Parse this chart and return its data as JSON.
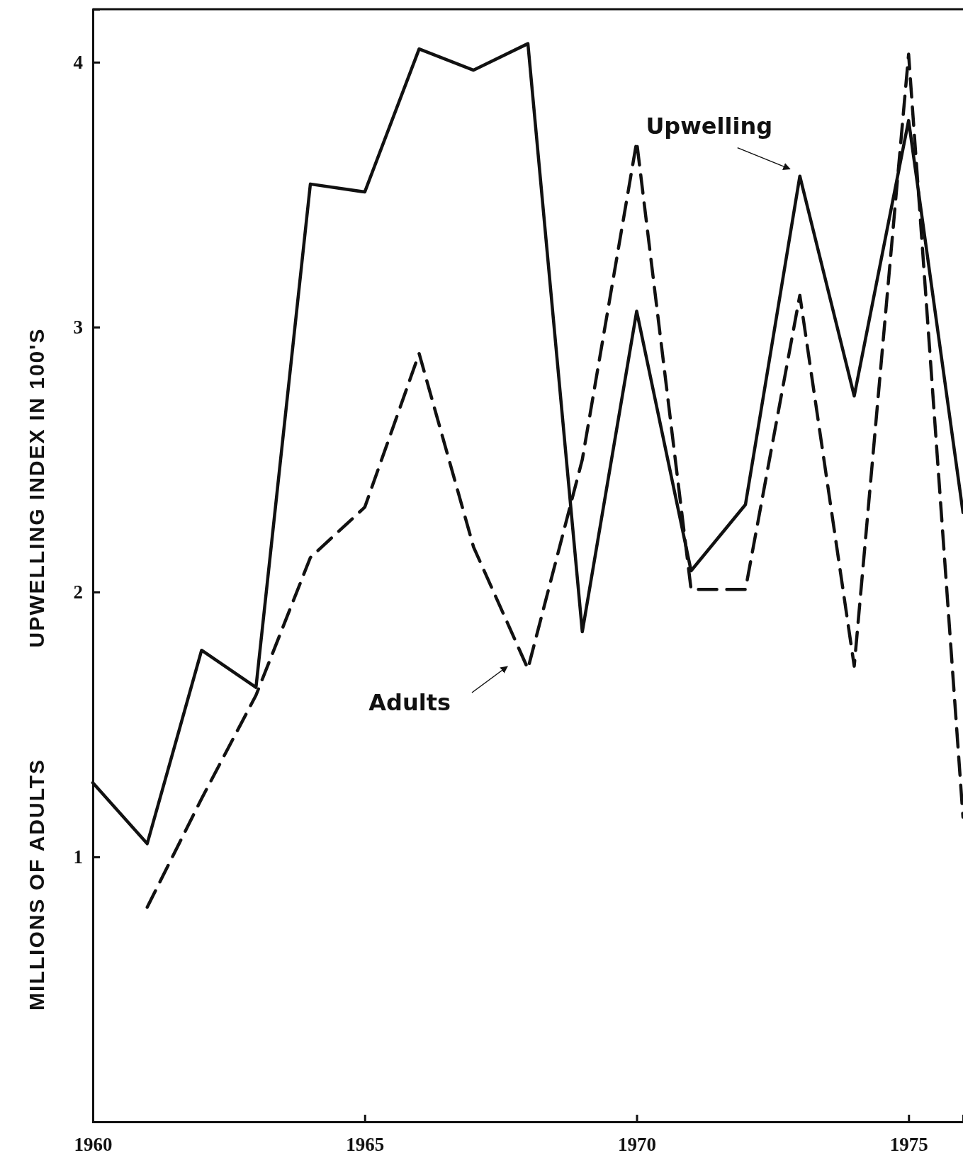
{
  "chart_data": {
    "type": "line",
    "ylabel": "MILLIONS OF ADULTS",
    "xlim": [
      1960,
      1976
    ],
    "xticks": [
      1960,
      1965,
      1970,
      1975
    ],
    "ylim": [
      0,
      4.2
    ],
    "yticks": [
      1,
      2,
      3,
      4
    ],
    "grid": false,
    "legend": false,
    "marker": "none",
    "series": [
      {
        "color": "#111111",
        "line_style": "solid",
        "x": [
          1960,
          1961,
          1962,
          1963,
          1964,
          1965,
          1966,
          1967,
          1968,
          1969,
          1970,
          1971,
          1972,
          1973,
          1974,
          1975,
          1976
        ],
        "values": [
          1.28,
          1.05,
          1.78,
          1.64,
          3.54,
          3.51,
          4.05,
          3.97,
          4.07,
          1.85,
          3.06,
          2.08,
          2.33,
          3.57,
          2.74,
          3.78,
          2.3
        ]
      },
      {
        "color": "#111111",
        "line_style": "dashed",
        "x": [
          1961,
          1962,
          1963,
          1964,
          1965,
          1966,
          1967,
          1968,
          1969,
          1970,
          1971,
          1972,
          1973,
          1974,
          1975,
          1976
        ],
        "values": [
          0.81,
          1.22,
          1.61,
          2.13,
          2.32,
          2.9,
          2.17,
          1.71,
          2.5,
          3.7,
          2.01,
          2.01,
          3.12,
          1.72,
          4.03,
          1.15
        ]
      }
    ],
    "annotations": [
      "UPWELLING INDEX IN 100'S",
      {
        "text": "Upwelling",
        "x": 1973,
        "y": 3.57
      },
      "Adults"
    ]
  }
}
